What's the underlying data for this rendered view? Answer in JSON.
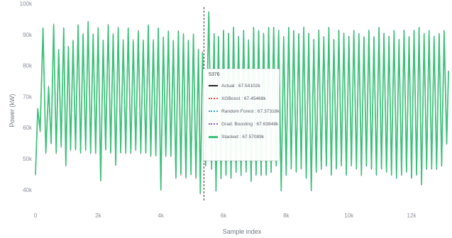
{
  "chart_data": {
    "type": "line",
    "xlabel": "Sample index",
    "ylabel": "Power (kW)",
    "xlim": [
      0,
      13200
    ],
    "ylim": [
      37,
      100
    ],
    "x_ticks": [
      {
        "value": 0,
        "label": "0"
      },
      {
        "value": 2000,
        "label": "2k"
      },
      {
        "value": 4000,
        "label": "4k"
      },
      {
        "value": 6000,
        "label": "6k"
      },
      {
        "value": 8000,
        "label": "8k"
      },
      {
        "value": 10000,
        "label": "10k"
      },
      {
        "value": 12000,
        "label": "12k"
      }
    ],
    "y_ticks": [
      {
        "value": 40,
        "label": "40k"
      },
      {
        "value": 50,
        "label": "50k"
      },
      {
        "value": 60,
        "label": "60k"
      },
      {
        "value": 70,
        "label": "70k"
      },
      {
        "value": 80,
        "label": "80k"
      },
      {
        "value": 90,
        "label": "90k"
      },
      {
        "value": 100,
        "label": "100k"
      }
    ],
    "grid": false,
    "hover_x": 5376,
    "series": [
      {
        "name": "Actual",
        "color": "#222222",
        "dash": "solid"
      },
      {
        "name": "XGBoost",
        "color": "#e0524f",
        "dash": "dotted"
      },
      {
        "name": "Random Forest",
        "color": "#3aa0c8",
        "dash": "dotted"
      },
      {
        "name": "Grad. Boosting",
        "color": "#8e5bb8",
        "dash": "dotted"
      },
      {
        "name": "Stacked",
        "color": "#3cc27a",
        "dash": "solid"
      }
    ],
    "extrema": [
      [
        0,
        45
      ],
      [
        72,
        66
      ],
      [
        150,
        59
      ],
      [
        240,
        92
      ],
      [
        330,
        52
      ],
      [
        420,
        73
      ],
      [
        500,
        55
      ],
      [
        580,
        93
      ],
      [
        660,
        52
      ],
      [
        740,
        85
      ],
      [
        820,
        54
      ],
      [
        900,
        92
      ],
      [
        970,
        48
      ],
      [
        1050,
        86
      ],
      [
        1120,
        53
      ],
      [
        1200,
        88
      ],
      [
        1280,
        53
      ],
      [
        1360,
        93
      ],
      [
        1440,
        52
      ],
      [
        1520,
        90
      ],
      [
        1600,
        53
      ],
      [
        1680,
        94
      ],
      [
        1760,
        52
      ],
      [
        1840,
        90
      ],
      [
        1920,
        52
      ],
      [
        2000,
        92
      ],
      [
        2080,
        43
      ],
      [
        2160,
        88
      ],
      [
        2240,
        53
      ],
      [
        2320,
        93
      ],
      [
        2400,
        52
      ],
      [
        2480,
        90
      ],
      [
        2560,
        48
      ],
      [
        2640,
        92
      ],
      [
        2720,
        52
      ],
      [
        2800,
        88
      ],
      [
        2880,
        52
      ],
      [
        2960,
        92
      ],
      [
        3040,
        52
      ],
      [
        3120,
        88
      ],
      [
        3200,
        53
      ],
      [
        3280,
        91
      ],
      [
        3360,
        52
      ],
      [
        3440,
        88
      ],
      [
        3520,
        52
      ],
      [
        3600,
        93
      ],
      [
        3680,
        51
      ],
      [
        3760,
        88
      ],
      [
        3840,
        51
      ],
      [
        3920,
        92
      ],
      [
        4000,
        40
      ],
      [
        4080,
        89
      ],
      [
        4160,
        51
      ],
      [
        4240,
        91
      ],
      [
        4320,
        51
      ],
      [
        4400,
        88
      ],
      [
        4480,
        44
      ],
      [
        4560,
        91
      ],
      [
        4640,
        45
      ],
      [
        4720,
        90
      ],
      [
        4800,
        44
      ],
      [
        4880,
        88
      ],
      [
        4960,
        45
      ],
      [
        5040,
        90
      ],
      [
        5120,
        44
      ],
      [
        5200,
        85
      ],
      [
        5260,
        39
      ],
      [
        5330,
        84
      ],
      [
        5376,
        67.6
      ],
      [
        5430,
        48
      ],
      [
        5530,
        97
      ],
      [
        5620,
        47
      ],
      [
        5700,
        90
      ],
      [
        5760,
        40
      ],
      [
        5840,
        89
      ],
      [
        5920,
        44
      ],
      [
        6000,
        91
      ],
      [
        6080,
        45
      ],
      [
        6160,
        90
      ],
      [
        6240,
        44
      ],
      [
        6320,
        92
      ],
      [
        6400,
        46
      ],
      [
        6480,
        89
      ],
      [
        6560,
        45
      ],
      [
        6640,
        91
      ],
      [
        6720,
        46
      ],
      [
        6800,
        88
      ],
      [
        6880,
        43
      ],
      [
        6960,
        92
      ],
      [
        7040,
        45
      ],
      [
        7120,
        91
      ],
      [
        7200,
        45
      ],
      [
        7280,
        90
      ],
      [
        7360,
        45
      ],
      [
        7440,
        92
      ],
      [
        7520,
        46
      ],
      [
        7600,
        92
      ],
      [
        7680,
        48
      ],
      [
        7760,
        91
      ],
      [
        7840,
        40
      ],
      [
        7920,
        89
      ],
      [
        8000,
        45
      ],
      [
        8080,
        92
      ],
      [
        8160,
        47
      ],
      [
        8240,
        91
      ],
      [
        8320,
        46
      ],
      [
        8400,
        90
      ],
      [
        8480,
        47
      ],
      [
        8560,
        92
      ],
      [
        8640,
        44
      ],
      [
        8720,
        90
      ],
      [
        8800,
        40
      ],
      [
        8880,
        88
      ],
      [
        8960,
        46
      ],
      [
        9040,
        91
      ],
      [
        9120,
        47
      ],
      [
        9200,
        89
      ],
      [
        9280,
        48
      ],
      [
        9360,
        92
      ],
      [
        9440,
        45
      ],
      [
        9520,
        88
      ],
      [
        9600,
        47
      ],
      [
        9680,
        91
      ],
      [
        9760,
        48
      ],
      [
        9840,
        90
      ],
      [
        9920,
        45
      ],
      [
        10000,
        89
      ],
      [
        10080,
        48
      ],
      [
        10160,
        91
      ],
      [
        10240,
        47
      ],
      [
        10320,
        90
      ],
      [
        10400,
        45
      ],
      [
        10480,
        89
      ],
      [
        10560,
        48
      ],
      [
        10640,
        91
      ],
      [
        10720,
        47
      ],
      [
        10800,
        89
      ],
      [
        10880,
        45
      ],
      [
        10960,
        92
      ],
      [
        11040,
        47
      ],
      [
        11120,
        90
      ],
      [
        11200,
        46
      ],
      [
        11280,
        89
      ],
      [
        11360,
        45
      ],
      [
        11440,
        91
      ],
      [
        11520,
        44
      ],
      [
        11600,
        88
      ],
      [
        11680,
        45
      ],
      [
        11760,
        91
      ],
      [
        11840,
        46
      ],
      [
        11920,
        89
      ],
      [
        12000,
        44
      ],
      [
        12080,
        91
      ],
      [
        12160,
        45
      ],
      [
        12240,
        92
      ],
      [
        12320,
        42
      ],
      [
        12400,
        90
      ],
      [
        12480,
        47
      ],
      [
        12560,
        91
      ],
      [
        12640,
        47
      ],
      [
        12720,
        89
      ],
      [
        12800,
        47
      ],
      [
        12880,
        90
      ],
      [
        12960,
        48
      ],
      [
        13040,
        91
      ],
      [
        13120,
        55
      ],
      [
        13180,
        78
      ]
    ]
  },
  "tooltip": {
    "title": "5376",
    "rows": [
      {
        "text": "Actual : 67.54102k",
        "color": "#222222",
        "dash": "solid"
      },
      {
        "text": "XGBoost : 67.45468k",
        "color": "#e0524f",
        "dash": "dotted"
      },
      {
        "text": "Random Forest : 67.37318k",
        "color": "#3aa0c8",
        "dash": "dotted"
      },
      {
        "text": "Grad. Boosting : 67.63848k",
        "color": "#8e5bb8",
        "dash": "dotted"
      },
      {
        "text": "Stacked : 67.57089k",
        "color": "#3cc27a",
        "dash": "solid"
      }
    ]
  }
}
